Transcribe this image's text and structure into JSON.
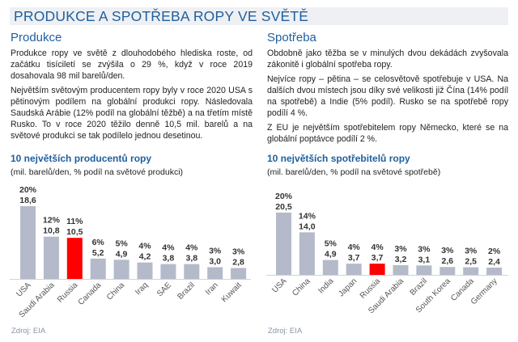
{
  "title": "PRODUKCE A SPOTŘEBA ROPY VE SVĚTĚ",
  "production": {
    "heading": "Produkce",
    "paragraphs": [
      "Produkce ropy ve světě z dlouhodobého hlediska roste, od začátku tisíciletí se zvýšila o 29 %, když v roce 2019 dosahovala 98 mil barelů/den.",
      "Největším světovým producentem ropy byly v roce 2020 USA s pětinovým podílem na globální produkci ropy. Následovala Saudská Arábie (12% podíl na globální těžbě) a na třetím místě Rusko. To v roce 2020 těžilo denně 10,5 mil. barelů a na světové produkci se tak podílelo jednou desetinou."
    ]
  },
  "consumption": {
    "heading": "Spotřeba",
    "paragraphs": [
      "Obdobně jako těžba se v minulých dvou dekádách zvyšovala zákonitě i globální spotřeba ropy.",
      "Nejvíce ropy – pětina – se celosvětově spotřebuje v USA. Na dalších dvou místech jsou díky své velikosti již Čína (14% podíl na spotřebě) a Indie (5% podíl). Rusko se na spotřebě ropy podílí 4 %.",
      "Z EU je největším spotřebitelem ropy Německo, které se na globální poptávce podílí 2 %."
    ]
  },
  "chart_data": [
    {
      "type": "bar",
      "title": "10 největších producentů ropy",
      "subtitle": "(mil. barelů/den, % podíl na světové produkci)",
      "categories": [
        "USA",
        "Saudi Arabia",
        "Russia",
        "Canada",
        "China",
        "Iraq",
        "SAE",
        "Brazil",
        "Iran",
        "Kuwait"
      ],
      "values": [
        18.6,
        10.8,
        10.5,
        5.2,
        4.9,
        4.2,
        3.8,
        3.8,
        3.0,
        2.8
      ],
      "value_labels": [
        "18,6",
        "10,8",
        "10,5",
        "5,2",
        "4,9",
        "4,2",
        "3,8",
        "3,8",
        "3,0",
        "2,8"
      ],
      "share_labels": [
        "20%",
        "12%",
        "11%",
        "6%",
        "5%",
        "4%",
        "4%",
        "4%",
        "3%",
        "3%"
      ],
      "highlight": "Russia",
      "colors": {
        "bar": "#b4bac9",
        "highlight": "#ff0000"
      },
      "source": "Zdroj: EIA"
    },
    {
      "type": "bar",
      "title": "10 největších spotřebitelů ropy",
      "subtitle": "(mil. barelů/den, % podíl na světové spotřebě)",
      "categories": [
        "USA",
        "China",
        "India",
        "Japan",
        "Russia",
        "Saudi Arabia",
        "Brazil",
        "South Korea",
        "Canada",
        "Germany"
      ],
      "values": [
        20.5,
        14.0,
        4.9,
        3.7,
        3.7,
        3.2,
        3.1,
        2.6,
        2.5,
        2.4
      ],
      "value_labels": [
        "20,5",
        "14,0",
        "4,9",
        "3,7",
        "3,7",
        "3,2",
        "3,1",
        "2,6",
        "2,5",
        "2,4"
      ],
      "share_labels": [
        "20%",
        "14%",
        "5%",
        "4%",
        "4%",
        "3%",
        "3%",
        "3%",
        "3%",
        "2%"
      ],
      "highlight": "Russia",
      "colors": {
        "bar": "#b4bac9",
        "highlight": "#ff0000"
      },
      "source": "Zdroj: EIA"
    }
  ]
}
